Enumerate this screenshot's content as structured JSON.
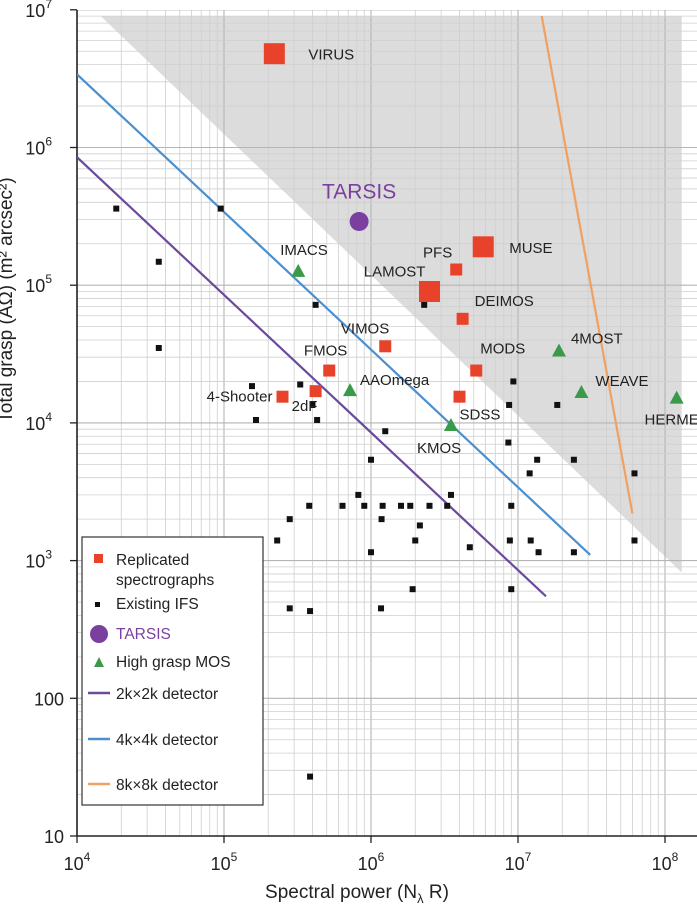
{
  "chart_data": {
    "type": "scatter",
    "xlabel": "Spectral power (N",
    "xlabel_sub": "λ",
    "xlabel_tail": " R)",
    "ylabel": "Total grasp (AΩ) (m² arcsec²)",
    "xscale": "log",
    "yscale": "log",
    "xlim": [
      10000,
      130000000
    ],
    "ylim": [
      10,
      10000000
    ],
    "x_ticks": [
      {
        "value": 10000,
        "base": "10",
        "exp": "4"
      },
      {
        "value": 100000,
        "base": "10",
        "exp": "5"
      },
      {
        "value": 1000000,
        "base": "10",
        "exp": "6"
      },
      {
        "value": 10000000,
        "base": "10",
        "exp": "7"
      },
      {
        "value": 100000000,
        "base": "10",
        "exp": "8"
      }
    ],
    "y_ticks": [
      {
        "value": 10,
        "base": "10",
        "exp": ""
      },
      {
        "value": 100,
        "base": "100",
        "exp": ""
      },
      {
        "value": 1000,
        "base": "10",
        "exp": "3"
      },
      {
        "value": 10000,
        "base": "10",
        "exp": "4"
      },
      {
        "value": 100000,
        "base": "10",
        "exp": "5"
      },
      {
        "value": 1000000,
        "base": "10",
        "exp": "6"
      },
      {
        "value": 10000000,
        "base": "10",
        "exp": "7"
      }
    ],
    "grid": true,
    "colors": {
      "replicated": "#e8432a",
      "existing": "#111111",
      "tarsis": "#7b3fa0",
      "mos": "#3a9a4a",
      "det2k": "#6a4a9c",
      "det4k": "#4a8fd0",
      "det8k": "#f0a060",
      "shade": "#dcdcdc"
    },
    "detector_lines": [
      {
        "name": "2k×2k detector",
        "color": "#6a4a9c",
        "x": [
          10000,
          15500000
        ],
        "y": [
          850000,
          550
        ]
      },
      {
        "name": "4k×4k detector",
        "color": "#4a8fd0",
        "x": [
          10000,
          31000000
        ],
        "y": [
          3400000,
          1100
        ]
      },
      {
        "name": "8k×8k detector",
        "color": "#f0a060",
        "x": [
          14500000,
          60000000
        ],
        "y": [
          9000000,
          2200
        ]
      }
    ],
    "shade_region": {
      "x": [
        14500,
        130000000,
        130000000
      ],
      "y": [
        9000000,
        9000000,
        820
      ]
    },
    "replicated": [
      {
        "label": "VIRUS",
        "x": 220000,
        "y": 4800000,
        "size": "large"
      },
      {
        "label": "MUSE",
        "x": 5800000,
        "y": 190000,
        "size": "large"
      },
      {
        "label": "LAMOST",
        "x": 2500000,
        "y": 90000,
        "size": "large"
      },
      {
        "label": "PFS",
        "x": 3800000,
        "y": 130000,
        "size": "small"
      },
      {
        "label": "DEIMOS",
        "x": 4200000,
        "y": 57000,
        "size": "small"
      },
      {
        "label": "VIMOS",
        "x": 1250000,
        "y": 36000,
        "size": "small"
      },
      {
        "label": "FMOS",
        "x": 520000,
        "y": 24000,
        "size": "small"
      },
      {
        "label": "MODS",
        "x": 5200000,
        "y": 24000,
        "size": "small"
      },
      {
        "label": "4-Shooter",
        "x": 250000,
        "y": 15500,
        "size": "small"
      },
      {
        "label": "2dF",
        "x": 420000,
        "y": 17000,
        "size": "small"
      },
      {
        "label": "SDSS",
        "x": 4000000,
        "y": 15500,
        "size": "small"
      }
    ],
    "mos": [
      {
        "label": "IMACS",
        "x": 320000,
        "y": 125000
      },
      {
        "label": "AAOmega",
        "x": 720000,
        "y": 17000
      },
      {
        "label": "KMOS",
        "x": 3500000,
        "y": 9500
      },
      {
        "label": "4MOST",
        "x": 19000000,
        "y": 33000
      },
      {
        "label": "WEAVE",
        "x": 27000000,
        "y": 16500
      },
      {
        "label": "HERMES",
        "x": 120000000,
        "y": 15000
      }
    ],
    "tarsis": [
      {
        "label": "TARSIS",
        "x": 830000,
        "y": 290000
      }
    ],
    "existing_ifs": [
      [
        18500,
        360000
      ],
      [
        95000,
        360000
      ],
      [
        36000,
        148000
      ],
      [
        36000,
        35000
      ],
      [
        420000,
        72000
      ],
      [
        2300000,
        72000
      ],
      [
        155000,
        18500
      ],
      [
        330000,
        19000
      ],
      [
        165000,
        10500
      ],
      [
        400000,
        13500
      ],
      [
        430000,
        10500
      ],
      [
        1250000,
        8700
      ],
      [
        1000000,
        5400
      ],
      [
        820000,
        3000
      ],
      [
        640000,
        2500
      ],
      [
        900000,
        2500
      ],
      [
        1180000,
        2000
      ],
      [
        1200000,
        2500
      ],
      [
        1600000,
        2500
      ],
      [
        1850000,
        2500
      ],
      [
        2150000,
        1800
      ],
      [
        2500000,
        2500
      ],
      [
        3300000,
        2500
      ],
      [
        3500000,
        3000
      ],
      [
        2000000,
        1400
      ],
      [
        230000,
        1400
      ],
      [
        280000,
        2000
      ],
      [
        380000,
        2500
      ],
      [
        1000000,
        1150
      ],
      [
        1170000,
        450
      ],
      [
        1920000,
        620
      ],
      [
        4700000,
        1250
      ],
      [
        9000000,
        2500
      ],
      [
        8800000,
        1400
      ],
      [
        9000000,
        620
      ],
      [
        9300000,
        20000
      ],
      [
        8700000,
        13500
      ],
      [
        8600000,
        7200
      ],
      [
        12000000,
        4300
      ],
      [
        13500000,
        5400
      ],
      [
        12200000,
        1400
      ],
      [
        13800000,
        1150
      ],
      [
        18500000,
        13500
      ],
      [
        24000000,
        5400
      ],
      [
        24000000,
        1150
      ],
      [
        62000000,
        4300
      ],
      [
        62000000,
        1400
      ],
      [
        385000,
        430
      ],
      [
        280000,
        450
      ],
      [
        385000,
        27
      ]
    ]
  },
  "legend": {
    "items": [
      {
        "label": "Replicated\nspectrographs",
        "kind": "replicated"
      },
      {
        "label": "Existing IFS",
        "kind": "existing"
      },
      {
        "label": "TARSIS",
        "kind": "tarsis"
      },
      {
        "label": "High grasp MOS",
        "kind": "mos"
      },
      {
        "label": "2k×2k detector",
        "kind": "det2k"
      },
      {
        "label": "4k×4k detector",
        "kind": "det4k"
      },
      {
        "label": "8k×8k detector",
        "kind": "det8k"
      }
    ]
  }
}
